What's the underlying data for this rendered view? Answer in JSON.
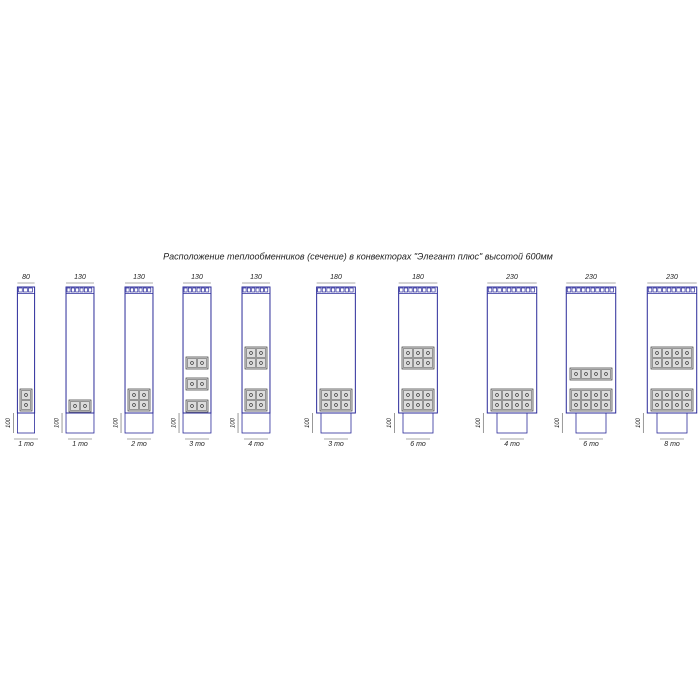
{
  "title": "Расположение теплообменников (сечение) в конвекторах \"Элегант плюс\" высотой 600мм",
  "sections": [
    {
      "width": 80,
      "height": 100,
      "label": "1 то"
    },
    {
      "width": 130,
      "height": 100,
      "label": "1 то"
    },
    {
      "width": 130,
      "height": 100,
      "label": "2 то"
    },
    {
      "width": 130,
      "height": 100,
      "label": "3 то"
    },
    {
      "width": 130,
      "height": 100,
      "label": "4 то"
    },
    {
      "width": 180,
      "height": 100,
      "label": "3 то"
    },
    {
      "width": 180,
      "height": 100,
      "label": "6 то"
    },
    {
      "width": 230,
      "height": 100,
      "label": "4 то"
    },
    {
      "width": 230,
      "height": 100,
      "label": "6 то"
    },
    {
      "width": 230,
      "height": 100,
      "label": "8 то"
    }
  ]
}
